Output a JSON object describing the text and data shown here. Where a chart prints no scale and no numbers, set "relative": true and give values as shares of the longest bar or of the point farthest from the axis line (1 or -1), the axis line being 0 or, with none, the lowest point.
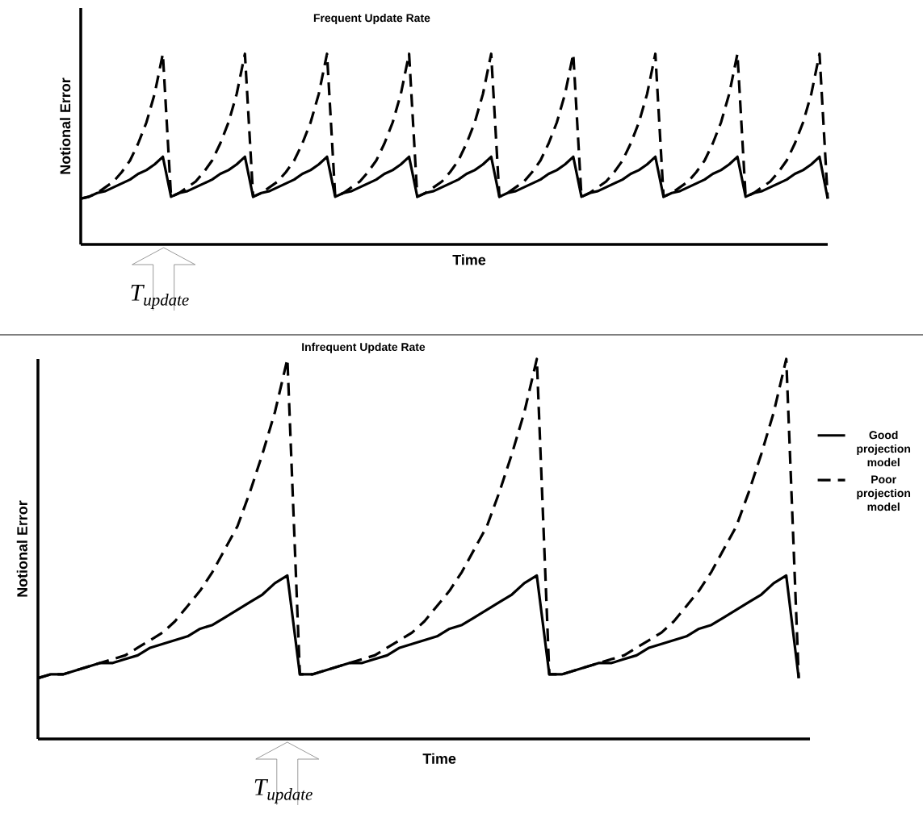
{
  "chart_data": [
    {
      "type": "line",
      "title": "Frequent Update Rate",
      "xlabel": "Time",
      "ylabel": "Notional Error",
      "relative": true,
      "annotations": [
        "T$_{update}$"
      ],
      "categories": [
        null,
        null,
        null,
        null,
        null,
        null,
        null,
        null,
        null,
        null,
        null,
        null,
        null,
        null,
        null,
        null,
        null,
        null,
        null,
        null,
        null,
        null,
        null,
        null,
        null,
        null,
        null,
        null,
        null,
        null,
        null,
        null,
        null,
        null,
        null,
        null,
        null,
        null,
        null,
        null,
        null,
        null,
        null,
        null,
        null,
        null,
        null,
        null,
        null,
        null,
        null,
        null,
        null,
        null,
        null,
        null,
        null,
        null,
        null,
        null,
        null,
        null,
        null,
        null,
        null,
        null,
        null,
        null,
        null,
        null,
        null,
        null,
        null,
        null,
        null,
        null,
        null,
        null,
        null,
        null,
        null,
        null,
        null,
        null,
        null,
        null,
        null,
        null,
        null,
        null,
        null,
        null
      ],
      "series": [
        {
          "color": "#000000",
          "line_style": "solid",
          "values": [
            0.24,
            0.25,
            0.27,
            0.28,
            0.3,
            0.32,
            0.34,
            0.37,
            0.39,
            0.42,
            0.46,
            0.25,
            0.27,
            0.28,
            0.3,
            0.32,
            0.34,
            0.37,
            0.39,
            0.42,
            0.46,
            0.25,
            0.27,
            0.28,
            0.3,
            0.32,
            0.34,
            0.37,
            0.39,
            0.42,
            0.46,
            0.25,
            0.27,
            0.28,
            0.3,
            0.32,
            0.34,
            0.37,
            0.39,
            0.42,
            0.46,
            0.25,
            0.27,
            0.28,
            0.3,
            0.32,
            0.34,
            0.37,
            0.39,
            0.42,
            0.46,
            0.25,
            0.27,
            0.28,
            0.3,
            0.32,
            0.34,
            0.37,
            0.39,
            0.42,
            0.46,
            0.25,
            0.27,
            0.28,
            0.3,
            0.32,
            0.34,
            0.37,
            0.39,
            0.42,
            0.46,
            0.25,
            0.27,
            0.28,
            0.3,
            0.32,
            0.34,
            0.37,
            0.39,
            0.42,
            0.46,
            0.25,
            0.27,
            0.28,
            0.3,
            0.32,
            0.34,
            0.37,
            0.39,
            0.42,
            0.46,
            0.24
          ]
        },
        {
          "color": "#000000",
          "line_style": "dashed",
          "values": [
            0.24,
            0.25,
            0.27,
            0.3,
            0.33,
            0.38,
            0.44,
            0.53,
            0.64,
            0.79,
            1,
            0.25,
            0.27,
            0.3,
            0.33,
            0.38,
            0.44,
            0.53,
            0.64,
            0.79,
            1,
            0.25,
            0.27,
            0.3,
            0.33,
            0.38,
            0.44,
            0.53,
            0.64,
            0.79,
            1,
            0.25,
            0.27,
            0.3,
            0.33,
            0.38,
            0.44,
            0.53,
            0.64,
            0.79,
            1,
            0.25,
            0.27,
            0.3,
            0.33,
            0.38,
            0.44,
            0.53,
            0.64,
            0.79,
            1,
            0.25,
            0.27,
            0.3,
            0.33,
            0.38,
            0.44,
            0.53,
            0.64,
            0.79,
            1,
            0.25,
            0.27,
            0.3,
            0.33,
            0.38,
            0.44,
            0.53,
            0.64,
            0.79,
            1,
            0.25,
            0.27,
            0.3,
            0.33,
            0.38,
            0.44,
            0.53,
            0.64,
            0.79,
            1,
            0.25,
            0.27,
            0.3,
            0.33,
            0.38,
            0.44,
            0.53,
            0.64,
            0.79,
            1,
            0.24
          ]
        }
      ]
    },
    {
      "type": "line",
      "title": "Infrequent Update Rate",
      "xlabel": "Time",
      "ylabel": "Notional Error",
      "relative": true,
      "legend": "right",
      "annotations": [
        "T$_{update}$"
      ],
      "categories": [
        null,
        null,
        null,
        null,
        null,
        null,
        null,
        null,
        null,
        null,
        null,
        null,
        null,
        null,
        null,
        null,
        null,
        null,
        null,
        null,
        null,
        null,
        null,
        null,
        null,
        null,
        null,
        null,
        null,
        null,
        null,
        null,
        null,
        null,
        null,
        null,
        null,
        null,
        null,
        null,
        null,
        null,
        null,
        null,
        null,
        null,
        null,
        null,
        null,
        null,
        null,
        null,
        null,
        null,
        null,
        null,
        null,
        null,
        null,
        null,
        null,
        null
      ],
      "series": [
        {
          "name": "Good projection model",
          "color": "#000000",
          "line_style": "solid",
          "values": [
            0.16,
            0.17,
            0.17,
            0.18,
            0.19,
            0.2,
            0.2,
            0.21,
            0.22,
            0.24,
            0.25,
            0.26,
            0.27,
            0.29,
            0.3,
            0.32,
            0.34,
            0.36,
            0.38,
            0.41,
            0.43,
            0.17,
            0.17,
            0.18,
            0.19,
            0.2,
            0.2,
            0.21,
            0.22,
            0.24,
            0.25,
            0.26,
            0.27,
            0.29,
            0.3,
            0.32,
            0.34,
            0.36,
            0.38,
            0.41,
            0.43,
            0.17,
            0.17,
            0.18,
            0.19,
            0.2,
            0.2,
            0.21,
            0.22,
            0.24,
            0.25,
            0.26,
            0.27,
            0.29,
            0.3,
            0.32,
            0.34,
            0.36,
            0.38,
            0.41,
            0.43,
            0.16
          ]
        },
        {
          "name": "Poor projection model",
          "color": "#000000",
          "line_style": "dashed",
          "values": [
            0.16,
            0.17,
            0.17,
            0.18,
            0.19,
            0.2,
            0.21,
            0.22,
            0.24,
            0.26,
            0.28,
            0.31,
            0.35,
            0.39,
            0.44,
            0.5,
            0.56,
            0.65,
            0.75,
            0.86,
            1,
            0.17,
            0.17,
            0.18,
            0.19,
            0.2,
            0.21,
            0.22,
            0.24,
            0.26,
            0.28,
            0.31,
            0.35,
            0.39,
            0.44,
            0.5,
            0.56,
            0.65,
            0.75,
            0.86,
            1,
            0.17,
            0.17,
            0.18,
            0.19,
            0.2,
            0.21,
            0.22,
            0.24,
            0.26,
            0.28,
            0.31,
            0.35,
            0.39,
            0.44,
            0.5,
            0.56,
            0.65,
            0.75,
            0.86,
            1,
            0.16
          ]
        }
      ]
    }
  ]
}
